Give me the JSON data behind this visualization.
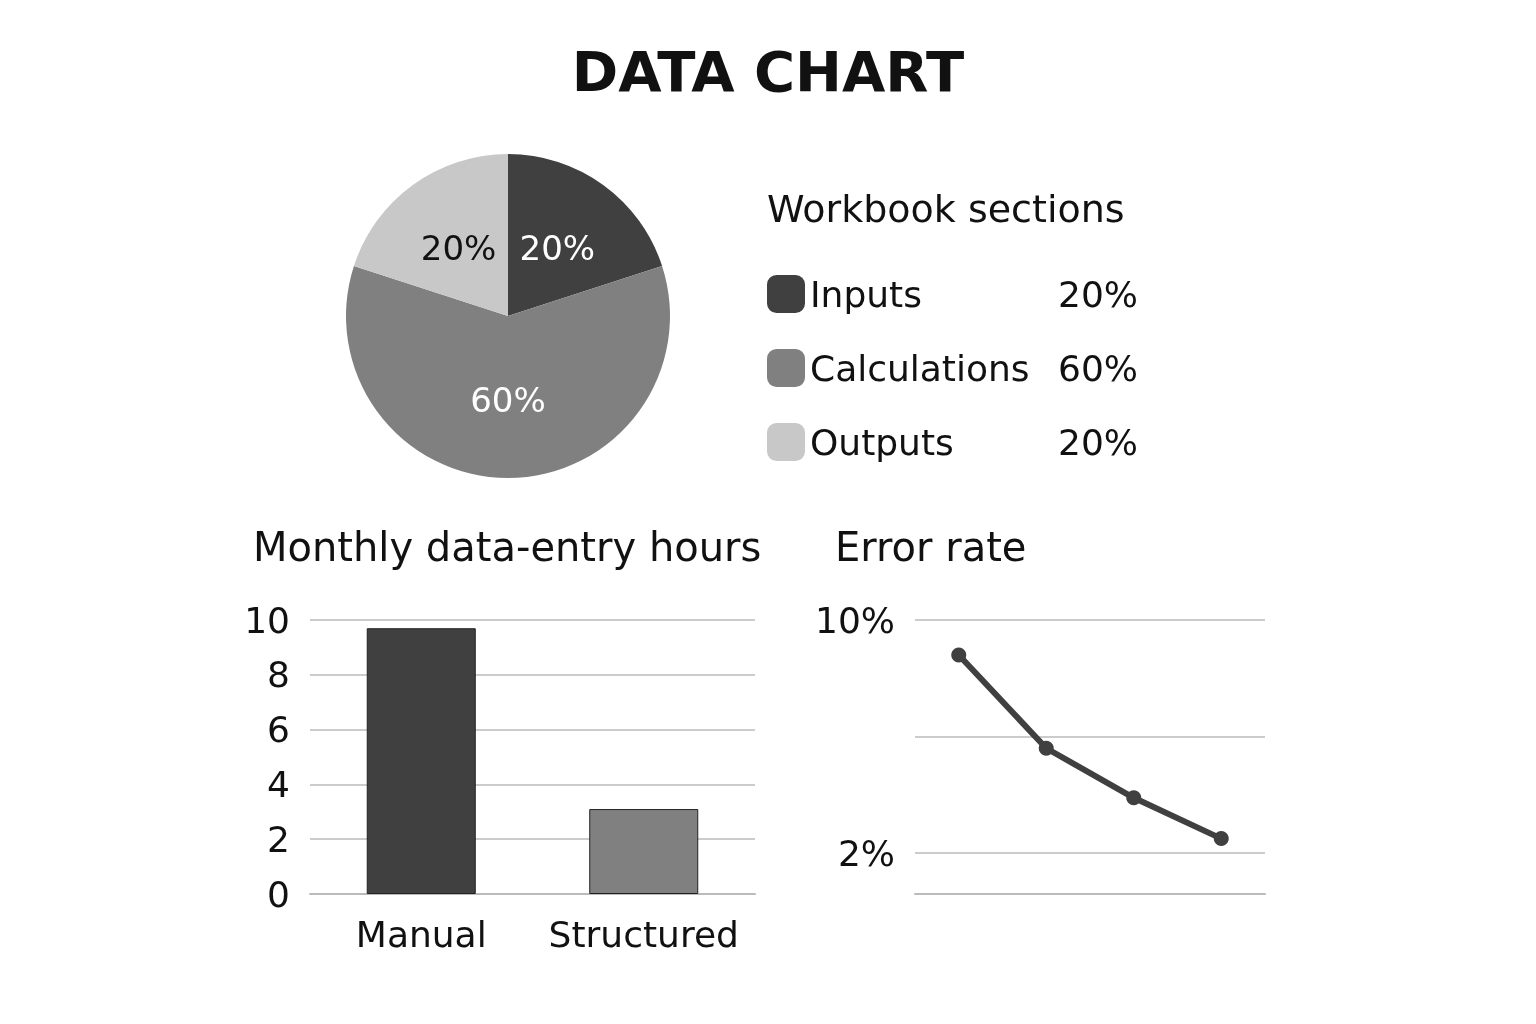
{
  "chart_data": [
    {
      "type": "pie",
      "title": "DATA CHART",
      "legend_title": "Workbook sections",
      "categories": [
        "Inputs",
        "Calculations",
        "Outputs"
      ],
      "values": [
        20,
        60,
        20
      ],
      "colors": [
        "#404040",
        "#808080",
        "#c8c8c8"
      ],
      "value_labels": [
        "20%",
        "60%",
        "20%"
      ],
      "legend": "right"
    },
    {
      "type": "bar",
      "title": "Monthly data-entry hours",
      "categories": [
        "Manual",
        "Structured"
      ],
      "values": [
        9.7,
        3.1
      ],
      "colors": [
        "#404040",
        "#808080"
      ],
      "ylim": [
        0,
        10
      ],
      "yticks": [
        0,
        2,
        4,
        6,
        8,
        10
      ],
      "grid": "y"
    },
    {
      "type": "line",
      "title": "Error rate",
      "categories": [
        null,
        null,
        null,
        null
      ],
      "series": [
        {
          "color": "#404040",
          "values": [
            8.8,
            5.6,
            3.9,
            2.5
          ]
        }
      ],
      "ylim": [
        0.6,
        10
      ],
      "yticks": [
        {
          "value": 10,
          "label": "10%"
        },
        {
          "value": 6,
          "label": null
        },
        {
          "value": 2,
          "label": "2%"
        }
      ],
      "grid": "y",
      "tick_labels": "y",
      "marker": "circle",
      "line_style": "solid"
    }
  ]
}
